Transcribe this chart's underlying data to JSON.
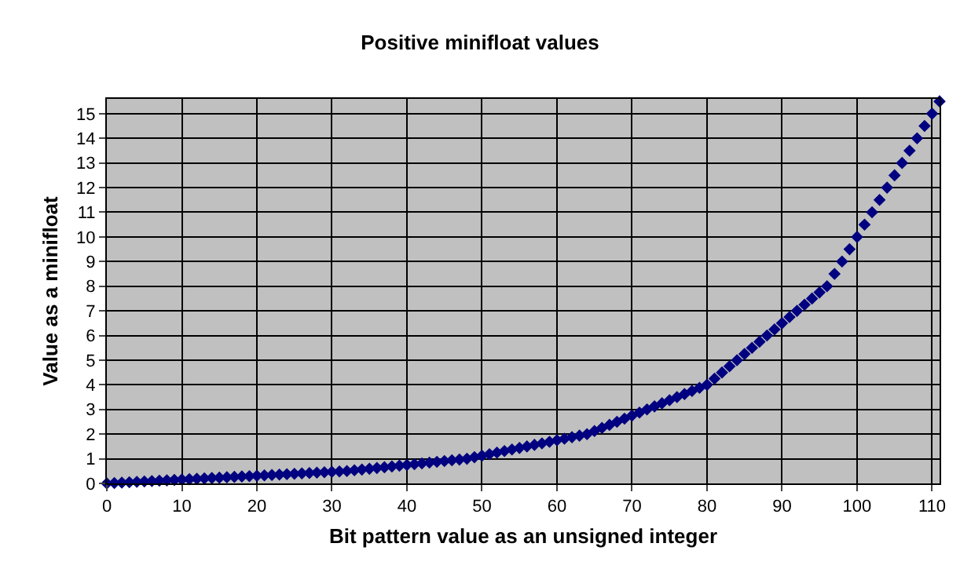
{
  "chart_data": {
    "type": "scatter",
    "title": "Positive minifloat values",
    "xlabel": "Bit pattern value as an unsigned integer",
    "ylabel": "Value as a minifloat",
    "x": [
      0,
      1,
      2,
      3,
      4,
      5,
      6,
      7,
      8,
      9,
      10,
      11,
      12,
      13,
      14,
      15,
      16,
      17,
      18,
      19,
      20,
      21,
      22,
      23,
      24,
      25,
      26,
      27,
      28,
      29,
      30,
      31,
      32,
      33,
      34,
      35,
      36,
      37,
      38,
      39,
      40,
      41,
      42,
      43,
      44,
      45,
      46,
      47,
      48,
      49,
      50,
      51,
      52,
      53,
      54,
      55,
      56,
      57,
      58,
      59,
      60,
      61,
      62,
      63,
      64,
      65,
      66,
      67,
      68,
      69,
      70,
      71,
      72,
      73,
      74,
      75,
      76,
      77,
      78,
      79,
      80,
      81,
      82,
      83,
      84,
      85,
      86,
      87,
      88,
      89,
      90,
      91,
      92,
      93,
      94,
      95,
      96,
      97,
      98,
      99,
      100,
      101,
      102,
      103,
      104,
      105,
      106,
      107,
      108,
      109,
      110,
      111
    ],
    "values": [
      0,
      0.015625,
      0.03125,
      0.046875,
      0.0625,
      0.078125,
      0.09375,
      0.109375,
      0.125,
      0.140625,
      0.15625,
      0.171875,
      0.1875,
      0.203125,
      0.21875,
      0.234375,
      0.25,
      0.265625,
      0.28125,
      0.296875,
      0.3125,
      0.328125,
      0.34375,
      0.359375,
      0.375,
      0.390625,
      0.40625,
      0.421875,
      0.4375,
      0.453125,
      0.46875,
      0.484375,
      0.5,
      0.53125,
      0.5625,
      0.59375,
      0.625,
      0.65625,
      0.6875,
      0.71875,
      0.75,
      0.78125,
      0.8125,
      0.84375,
      0.875,
      0.90625,
      0.9375,
      0.96875,
      1,
      1.0625,
      1.125,
      1.1875,
      1.25,
      1.3125,
      1.375,
      1.4375,
      1.5,
      1.5625,
      1.625,
      1.6875,
      1.75,
      1.8125,
      1.875,
      1.9375,
      2,
      2.125,
      2.25,
      2.375,
      2.5,
      2.625,
      2.75,
      2.875,
      3,
      3.125,
      3.25,
      3.375,
      3.5,
      3.625,
      3.75,
      3.875,
      4,
      4.25,
      4.5,
      4.75,
      5,
      5.25,
      5.5,
      5.75,
      6,
      6.25,
      6.5,
      6.75,
      7,
      7.25,
      7.5,
      7.75,
      8,
      8.5,
      9,
      9.5,
      10,
      10.5,
      11,
      11.5,
      12,
      12.5,
      13,
      13.5,
      14,
      14.5,
      15,
      15.5
    ],
    "color": "#000080",
    "marker": "diamond",
    "xlim": [
      0,
      111
    ],
    "xticks": [
      0,
      10,
      20,
      30,
      40,
      50,
      60,
      70,
      80,
      90,
      100,
      110
    ],
    "ylim": [
      0,
      15.6
    ],
    "yticks": [
      0,
      1,
      2,
      3,
      4,
      5,
      6,
      7,
      8,
      9,
      10,
      11,
      12,
      13,
      14,
      15
    ],
    "grid": true,
    "legend": false
  }
}
